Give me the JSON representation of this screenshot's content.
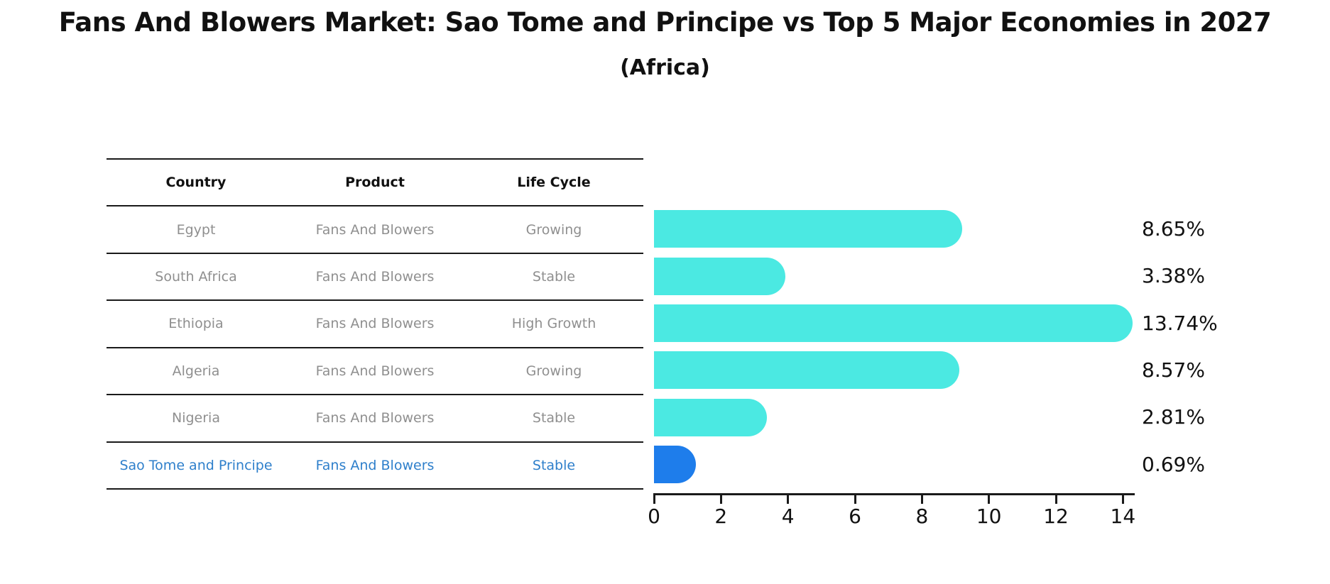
{
  "title": "Fans And Blowers Market: Sao Tome and Principe vs Top 5 Major Economies in 2027",
  "subtitle": "(Africa)",
  "table": {
    "headers": [
      "Country",
      "Product",
      "Life Cycle"
    ],
    "rows": [
      {
        "country": "Egypt",
        "product": "Fans And Blowers",
        "life_cycle": "Growing",
        "highlight": false
      },
      {
        "country": "South Africa",
        "product": "Fans And Blowers",
        "life_cycle": "Stable",
        "highlight": false
      },
      {
        "country": "Ethiopia",
        "product": "Fans And Blowers",
        "life_cycle": "High Growth",
        "highlight": false
      },
      {
        "country": "Algeria",
        "product": "Fans And Blowers",
        "life_cycle": "Growing",
        "highlight": false
      },
      {
        "country": "Nigeria",
        "product": "Fans And Blowers",
        "life_cycle": "Stable",
        "highlight": false
      },
      {
        "country": "Sao Tome and Principe",
        "product": "Fans And Blowers",
        "life_cycle": "Stable",
        "highlight": true
      }
    ]
  },
  "chart_data": {
    "type": "bar",
    "orientation": "horizontal",
    "title": "Fans And Blowers Market: Sao Tome and Principe vs Top 5 Major Economies in 2027 (Africa)",
    "categories": [
      "Egypt",
      "South Africa",
      "Ethiopia",
      "Algeria",
      "Nigeria",
      "Sao Tome and Principe"
    ],
    "values": [
      8.65,
      3.38,
      13.74,
      8.57,
      2.81,
      0.69
    ],
    "value_labels": [
      "8.65%",
      "3.38%",
      "13.74%",
      "8.57%",
      "2.81%",
      "0.69%"
    ],
    "xticks": [
      0,
      2,
      4,
      6,
      8,
      10,
      12,
      14
    ],
    "xlim": [
      0,
      14.37
    ],
    "xlabel": "",
    "ylabel": "",
    "grid": false,
    "legend": false,
    "bar_color": "#4BE9E2",
    "highlight_color": "#1E7DEB",
    "highlight_index": 5
  },
  "colors": {
    "bar": "#4BE9E2",
    "highlight_bar": "#1E7DEB",
    "highlight_text": "#2E7FCB",
    "row_text": "#8F8F8F",
    "header_text": "#111111",
    "line": "#1A1A1A"
  }
}
